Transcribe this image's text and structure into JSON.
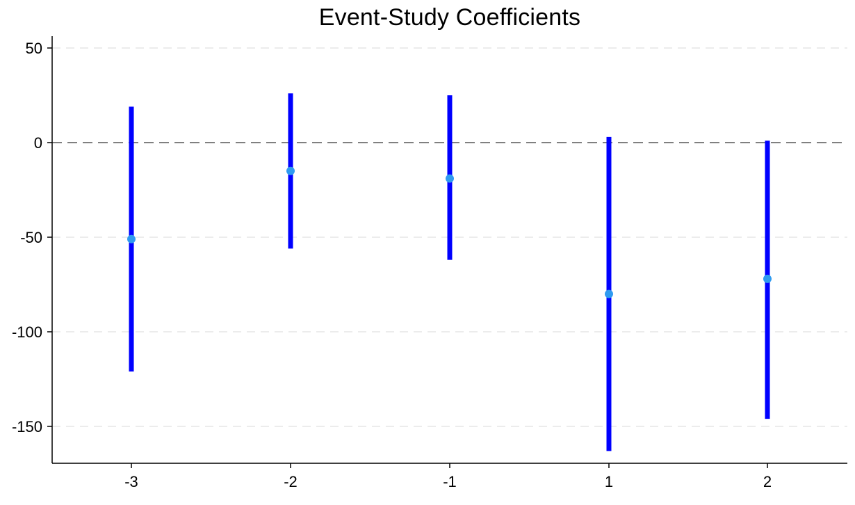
{
  "chart_data": {
    "type": "scatter",
    "title": "Event-Study Coefficients",
    "xlabel": "",
    "ylabel": "",
    "categories": [
      "-3",
      "-2",
      "-1",
      "1",
      "2"
    ],
    "x": [
      -3,
      -2,
      -1,
      1,
      2
    ],
    "estimates": [
      -51,
      -15,
      -19,
      -80,
      -72
    ],
    "ci_lower": [
      -121,
      -56,
      -62,
      -163,
      -146
    ],
    "ci_upper": [
      19,
      26,
      25,
      3,
      1
    ],
    "ylim": [
      -170,
      51
    ],
    "yticks": [
      50,
      0,
      -50,
      -100,
      -150
    ],
    "reference_line_y": 0,
    "grid": true,
    "legend": "none",
    "colors": {
      "ci": "#0000ff",
      "point": "#2f9bf0",
      "reference_line": "#808080",
      "grid": "#e6e6e6",
      "axis": "#000000"
    }
  }
}
